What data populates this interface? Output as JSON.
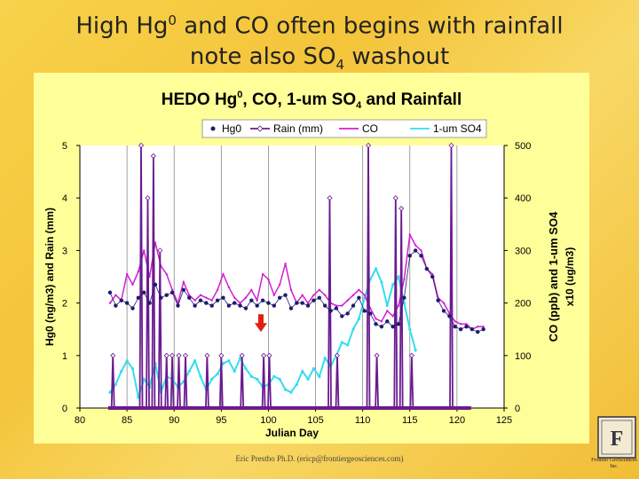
{
  "slide": {
    "title_line1_pre": "High Hg",
    "title_line1_sup": "0",
    "title_line1_post": " and CO often begins with rainfall",
    "title_line2_pre": "note also SO",
    "title_line2_sub": "4",
    "title_line2_post": " washout",
    "footer": "Eric Prestbo Ph.D. (ericp@frontiergeosciences.com)",
    "logo_text": "Frontier GeoSciences Inc."
  },
  "colors": {
    "hg0": "#1c1c6e",
    "rain": "#6a1b8f",
    "co": "#d21fd2",
    "so4": "#33ddee",
    "marker": "#e02010",
    "plot_bg": "#ffffff",
    "panel_bg": "#ffff99"
  },
  "chart_data": {
    "type": "line",
    "title_pre": "HEDO Hg",
    "title_sup": "0",
    "title_mid": ", CO, 1-um SO",
    "title_sub": "4",
    "title_post": " and Rainfall",
    "xlabel": "Julian Day",
    "ylabel_left": "Hg0 (ng/m3) and Rain (mm)",
    "ylabel_right_1": "CO (ppb) and 1-um SO4",
    "ylabel_right_2": "x10 (ug/m3)",
    "xlim": [
      80,
      125
    ],
    "ylim_left": [
      0,
      5
    ],
    "ylim_right": [
      0,
      500
    ],
    "x_ticks": [
      "80",
      "85",
      "90",
      "95",
      "100",
      "105",
      "110",
      "115",
      "120",
      "125"
    ],
    "y_ticks_left": [
      "0",
      "1",
      "2",
      "3",
      "4",
      "5"
    ],
    "y_ticks_right": [
      "0",
      "100",
      "200",
      "300",
      "400",
      "500"
    ],
    "grid_x": true,
    "legend": [
      "Hg0",
      "Rain (mm)",
      "CO",
      "1-um SO4"
    ],
    "annotation": "red arrow near day 100",
    "series": [
      {
        "name": "Hg0",
        "axis": "left",
        "x": [
          83.2,
          83.8,
          84.4,
          85.0,
          85.6,
          86.2,
          86.8,
          87.4,
          88.0,
          88.6,
          89.2,
          89.8,
          90.4,
          91.0,
          91.6,
          92.2,
          92.8,
          93.4,
          94.0,
          94.6,
          95.2,
          95.8,
          96.4,
          97.0,
          97.6,
          98.2,
          98.8,
          99.4,
          100.0,
          100.6,
          101.2,
          101.8,
          102.4,
          103.0,
          103.6,
          104.2,
          104.8,
          105.4,
          106.0,
          106.6,
          107.2,
          107.8,
          108.4,
          109.0,
          109.6,
          110.2,
          110.8,
          111.4,
          112.0,
          112.6,
          113.2,
          113.8,
          114.4,
          115.0,
          115.6,
          116.2,
          116.8,
          117.4,
          118.0,
          118.6,
          119.2,
          119.8,
          120.4,
          121.0,
          121.6,
          122.2,
          122.8
        ],
        "values": [
          2.2,
          1.95,
          2.05,
          2.0,
          1.9,
          2.1,
          2.2,
          2.0,
          2.35,
          2.1,
          2.15,
          2.2,
          1.95,
          2.25,
          2.1,
          1.95,
          2.05,
          2.0,
          1.95,
          2.05,
          2.1,
          1.95,
          2.0,
          1.95,
          1.9,
          2.05,
          1.95,
          2.05,
          2.0,
          1.95,
          2.1,
          2.15,
          1.9,
          2.0,
          2.0,
          1.95,
          2.05,
          2.1,
          1.95,
          1.85,
          1.9,
          1.75,
          1.8,
          1.95,
          2.1,
          1.85,
          1.8,
          1.6,
          1.55,
          1.65,
          1.55,
          1.6,
          2.1,
          2.9,
          3.0,
          2.9,
          2.65,
          2.5,
          2.05,
          1.85,
          1.75,
          1.55,
          1.5,
          1.55,
          1.5,
          1.45,
          1.5
        ]
      },
      {
        "name": "Rain (mm)",
        "axis": "left",
        "x": [
          83.5,
          86.5,
          87.2,
          87.8,
          88.5,
          89.2,
          89.8,
          90.5,
          91.2,
          93.5,
          95.0,
          97.2,
          99.5,
          100.1,
          106.5,
          107.3,
          110.6,
          111.5,
          113.5,
          114.1,
          115.2,
          119.4
        ],
        "values": [
          1.0,
          5.0,
          4.0,
          4.8,
          3.0,
          1.0,
          1.0,
          1.0,
          1.0,
          1.0,
          1.0,
          1.0,
          1.0,
          1.0,
          4.0,
          1.0,
          5.0,
          1.0,
          4.0,
          3.8,
          1.0,
          5.0
        ]
      },
      {
        "name": "CO",
        "axis": "right",
        "x": [
          83.2,
          83.8,
          84.4,
          85.0,
          85.6,
          86.2,
          86.8,
          87.4,
          88.0,
          88.6,
          89.2,
          89.8,
          90.4,
          91.0,
          91.6,
          92.2,
          92.8,
          93.4,
          94.0,
          94.6,
          95.2,
          95.8,
          96.4,
          97.0,
          97.6,
          98.2,
          98.8,
          99.4,
          100.0,
          100.6,
          101.2,
          101.8,
          102.4,
          103.0,
          103.6,
          104.2,
          104.8,
          105.4,
          106.0,
          106.6,
          107.2,
          107.8,
          108.4,
          109.0,
          109.6,
          110.2,
          110.8,
          111.4,
          112.0,
          112.6,
          113.2,
          113.8,
          114.4,
          115.0,
          115.6,
          116.2,
          116.8,
          117.4,
          118.0,
          118.6,
          119.2,
          119.8,
          120.4,
          121.0,
          121.6,
          122.2,
          122.8
        ],
        "values": [
          200,
          215,
          205,
          255,
          235,
          260,
          300,
          250,
          315,
          270,
          255,
          225,
          200,
          240,
          215,
          205,
          215,
          210,
          205,
          225,
          255,
          230,
          210,
          200,
          210,
          225,
          205,
          255,
          245,
          215,
          235,
          275,
          225,
          200,
          215,
          200,
          215,
          225,
          215,
          200,
          195,
          195,
          205,
          215,
          225,
          215,
          190,
          170,
          165,
          185,
          175,
          195,
          245,
          330,
          310,
          300,
          265,
          255,
          210,
          200,
          180,
          165,
          160,
          160,
          150,
          155,
          155
        ]
      },
      {
        "name": "1-um SO4",
        "axis": "right",
        "x": [
          83.2,
          83.8,
          84.4,
          85.0,
          85.6,
          86.2,
          86.8,
          87.4,
          88.0,
          88.6,
          89.2,
          89.8,
          90.4,
          91.0,
          91.6,
          92.2,
          92.8,
          93.4,
          94.0,
          94.6,
          95.2,
          95.8,
          96.4,
          97.0,
          97.6,
          98.2,
          98.8,
          99.4,
          100.0,
          100.6,
          101.2,
          101.8,
          102.4,
          103.0,
          103.6,
          104.2,
          104.8,
          105.4,
          106.0,
          106.6,
          107.2,
          107.8,
          108.4,
          109.0,
          109.6,
          110.2,
          110.8,
          111.4,
          112.0,
          112.6,
          113.2,
          113.8,
          114.4,
          115.0,
          115.6
        ],
        "values": [
          30,
          45,
          70,
          90,
          75,
          20,
          55,
          40,
          85,
          30,
          60,
          55,
          40,
          50,
          70,
          90,
          60,
          35,
          55,
          65,
          85,
          90,
          70,
          95,
          75,
          60,
          55,
          40,
          45,
          60,
          55,
          35,
          30,
          45,
          70,
          55,
          75,
          60,
          95,
          80,
          100,
          125,
          120,
          150,
          170,
          210,
          245,
          265,
          240,
          195,
          235,
          250,
          200,
          150,
          110
        ]
      }
    ]
  }
}
